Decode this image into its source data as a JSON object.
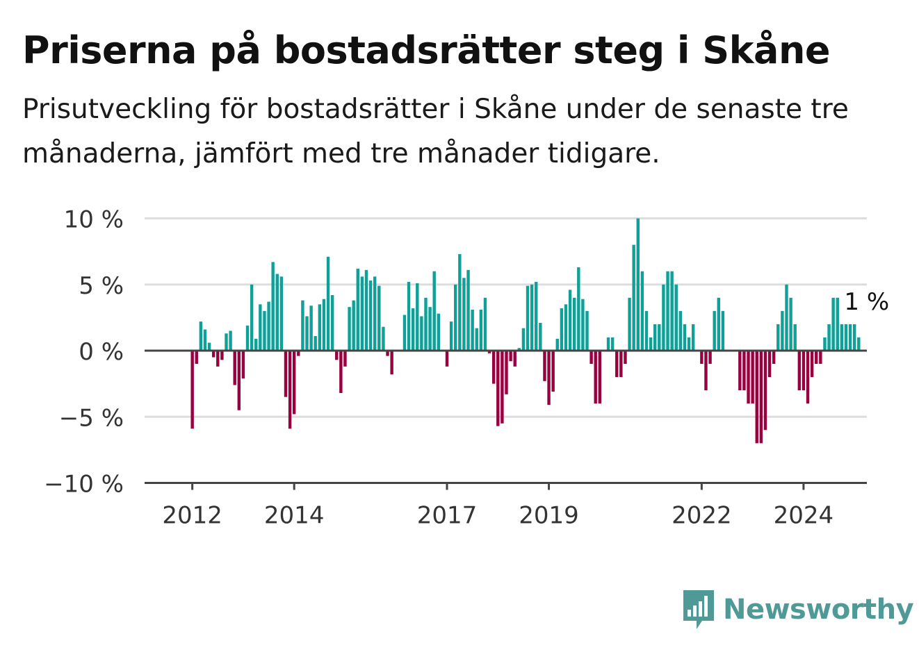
{
  "header": {
    "title": "Priserna på bostadsrätter steg i Skåne",
    "subtitle": "Prisutveckling för bostadsrätter i Skåne under de senaste tre månaderna, jämfört med tre månader tidigare."
  },
  "brand": {
    "name": "Newsworthy",
    "icon": "bar-chart-speech-bubble-icon"
  },
  "colors": {
    "positive": "#0fa097",
    "negative": "#99003f",
    "grid": "#dddddd",
    "axis": "#444444"
  },
  "chart_data": {
    "type": "bar",
    "title": "Priserna på bostadsrätter steg i Skåne",
    "xlabel": "",
    "ylabel": "",
    "ylim": [
      -10,
      10
    ],
    "y_ticks": [
      {
        "value": 10,
        "label": "10 %"
      },
      {
        "value": 5,
        "label": "5 %"
      },
      {
        "value": 0,
        "label": "0 %"
      },
      {
        "value": -5,
        "label": "−5 %"
      },
      {
        "value": -10,
        "label": "−10 %"
      }
    ],
    "x_ticks": [
      {
        "label": "2012",
        "date": "2012-01"
      },
      {
        "label": "2014",
        "date": "2014-01"
      },
      {
        "label": "2017",
        "date": "2017-01"
      },
      {
        "label": "2019",
        "date": "2019-01"
      },
      {
        "label": "2022",
        "date": "2022-01"
      },
      {
        "label": "2024",
        "date": "2024-01"
      }
    ],
    "grid": true,
    "start_month": "2011-05",
    "end_month": "2025-03",
    "values": [
      0,
      0,
      0,
      0,
      0,
      0,
      0,
      0,
      -5.9,
      -1,
      2.2,
      1.6,
      0.6,
      -0.5,
      -1.2,
      -0.7,
      1.3,
      1.5,
      -2.6,
      -4.5,
      -2.1,
      1.9,
      5,
      0.9,
      3.5,
      3,
      3.7,
      6.7,
      5.8,
      5.6,
      -3.5,
      -5.9,
      -4.8,
      -0.4,
      3.8,
      2.6,
      3.4,
      1.1,
      3.5,
      3.9,
      7.1,
      4.2,
      -0.7,
      -3.2,
      -1.2,
      3.3,
      3.8,
      6.2,
      5.6,
      6.1,
      5.3,
      5.6,
      4.9,
      1.8,
      -0.4,
      -1.8,
      0,
      0,
      2.7,
      5.2,
      3.2,
      5.1,
      2.6,
      4,
      3.3,
      6,
      2.8,
      0,
      -1.2,
      2.2,
      5,
      7.3,
      5.5,
      6.1,
      3.1,
      1.7,
      3.1,
      4,
      -0.2,
      -2.5,
      -5.7,
      -5.5,
      -3.3,
      -0.8,
      -1.2,
      0.2,
      1.7,
      4.9,
      5,
      5.2,
      2.1,
      -2.3,
      -4.1,
      -3.1,
      0.9,
      3.2,
      3.5,
      4.6,
      4,
      6.3,
      3.9,
      3,
      -1,
      -4,
      -4,
      0,
      1,
      1,
      -2,
      -2,
      -1,
      4,
      8,
      10,
      6,
      3,
      1,
      2,
      2,
      5,
      6,
      6,
      5,
      3,
      2,
      1,
      2,
      0,
      -1,
      -3,
      -1,
      3,
      4,
      3,
      0,
      0,
      0,
      -3,
      -3,
      -4,
      -4,
      -7,
      -7,
      -6,
      -2,
      -1,
      2,
      3,
      5,
      4,
      2,
      -3,
      -3,
      -4,
      -2,
      -1,
      -1,
      1,
      2,
      4,
      4,
      2,
      2,
      2,
      2,
      1
    ],
    "annotation": {
      "text": "1 %",
      "month": "2025-03",
      "value": 1
    }
  }
}
